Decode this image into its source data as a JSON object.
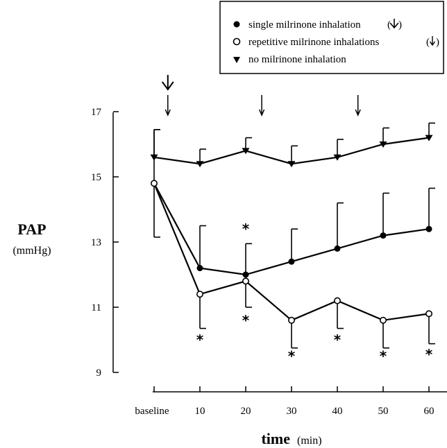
{
  "chart_data": {
    "type": "line",
    "title": "",
    "ylabel": "PAP",
    "ylabel_unit": "(mmHg)",
    "xlabel": "time",
    "xlabel_unit": "(min)",
    "categories": [
      "baseline",
      "10",
      "20",
      "30",
      "40",
      "50",
      "60"
    ],
    "x": [
      0,
      10,
      20,
      30,
      40,
      50,
      60
    ],
    "ylim": [
      9,
      17
    ],
    "yticks": [
      "9",
      "11",
      "13",
      "15",
      "17"
    ],
    "legend_position": "top-right",
    "series": [
      {
        "name": "single milrinone inhalation",
        "marker": "filled-circle",
        "values": [
          14.8,
          12.2,
          12.0,
          12.4,
          12.8,
          13.2,
          13.4
        ],
        "errors": [
          1.65,
          1.3,
          0.95,
          1.0,
          1.4,
          1.3,
          1.25
        ]
      },
      {
        "name": "repetitive milrinone inhalations",
        "marker": "open-circle",
        "values": [
          14.8,
          11.4,
          11.8,
          10.6,
          11.2,
          10.6,
          10.8
        ],
        "errors": [
          1.65,
          1.05,
          0.8,
          0.85,
          0.85,
          0.85,
          0.92
        ]
      },
      {
        "name": "no milrinone inhalation",
        "marker": "filled-triangle",
        "values": [
          15.6,
          15.4,
          15.8,
          15.4,
          15.6,
          16.0,
          16.2
        ],
        "errors": [
          0.85,
          0.45,
          0.4,
          0.55,
          0.55,
          0.5,
          0.45
        ]
      }
    ],
    "significance_marks": [
      {
        "x": 20,
        "y": 13.4,
        "text": "*"
      },
      {
        "x": 10,
        "y": 10.0,
        "text": "*"
      },
      {
        "x": 20,
        "y": 10.6,
        "text": "*"
      },
      {
        "x": 30,
        "y": 9.5,
        "text": "*"
      },
      {
        "x": 40,
        "y": 10.0,
        "text": "*"
      },
      {
        "x": 50,
        "y": 9.5,
        "text": "*"
      },
      {
        "x": 60,
        "y": 9.55,
        "text": "*"
      }
    ],
    "inhalation_arrows": [
      {
        "x": 3,
        "type": "single"
      },
      {
        "x": 3,
        "type": "repetitive"
      },
      {
        "x": 23.5,
        "type": "repetitive"
      },
      {
        "x": 44.5,
        "type": "repetitive"
      }
    ]
  }
}
